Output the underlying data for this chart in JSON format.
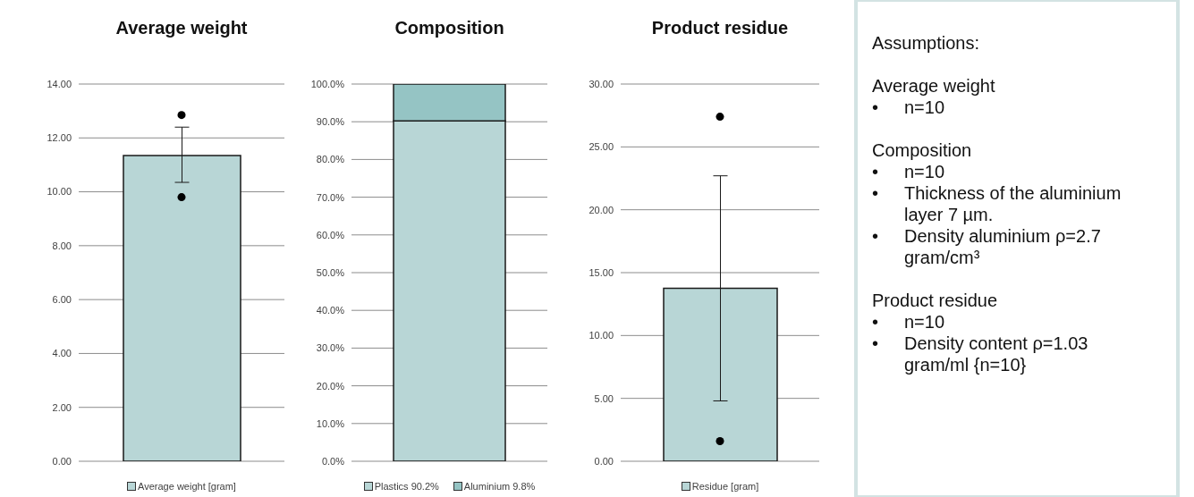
{
  "chart_data": [
    {
      "type": "bar",
      "title": "Average weight",
      "categories": [
        null
      ],
      "tick_labels": "y",
      "grid": "y",
      "legend": "bottom",
      "marker": "circle",
      "series": [
        {
          "name": "Average weight [gram]",
          "color": "#b8d6d6",
          "values": [
            11.35
          ],
          "errors": [
            [
              10.35,
              12.4
            ]
          ]
        },
        {
          "type": "scatter",
          "color": "#000000",
          "values": [
            12.85
          ]
        },
        {
          "type": "scatter",
          "color": "#000000",
          "values": [
            9.8
          ]
        }
      ],
      "ylim": [
        0,
        14
      ],
      "yticks": [
        {
          "value": 0,
          "label": "0.00"
        },
        {
          "value": 2,
          "label": "2.00"
        },
        {
          "value": 4,
          "label": "4.00"
        },
        {
          "value": 6,
          "label": "6.00"
        },
        {
          "value": 8,
          "label": "8.00"
        },
        {
          "value": 10,
          "label": "10.00"
        },
        {
          "value": 12,
          "label": "12.00"
        },
        {
          "value": 14,
          "label": "14.00"
        }
      ]
    },
    {
      "type": "bar",
      "title": "Composition",
      "categories": [
        null
      ],
      "tick_labels": "y",
      "grid": "y",
      "legend": "bottom",
      "stacked": true,
      "series": [
        {
          "name": "Plastics 90.2%",
          "color": "#b8d6d6",
          "values": [
            90.2
          ]
        },
        {
          "name": "Aluminium 9.8%",
          "color": "#95c4c4",
          "values": [
            9.8
          ]
        }
      ],
      "ylim": [
        0,
        100
      ],
      "yticks": [
        {
          "value": 0,
          "label": "0.0%"
        },
        {
          "value": 10,
          "label": "10.0%"
        },
        {
          "value": 20,
          "label": "20.0%"
        },
        {
          "value": 30,
          "label": "30.0%"
        },
        {
          "value": 40,
          "label": "40.0%"
        },
        {
          "value": 50,
          "label": "50.0%"
        },
        {
          "value": 60,
          "label": "60.0%"
        },
        {
          "value": 70,
          "label": "70.0%"
        },
        {
          "value": 80,
          "label": "80.0%"
        },
        {
          "value": 90,
          "label": "90.0%"
        },
        {
          "value": 100,
          "label": "100.0%"
        }
      ]
    },
    {
      "type": "bar",
      "title": "Product residue",
      "categories": [
        null
      ],
      "tick_labels": "y",
      "grid": "y",
      "legend": "bottom",
      "marker": "circle",
      "series": [
        {
          "name": "Residue [gram]",
          "color": "#b8d6d6",
          "values": [
            13.75
          ],
          "errors": [
            [
              4.8,
              22.7
            ]
          ]
        },
        {
          "type": "scatter",
          "color": "#000000",
          "values": [
            27.4
          ]
        },
        {
          "type": "scatter",
          "color": "#000000",
          "values": [
            1.6
          ]
        }
      ],
      "ylim": [
        0,
        30
      ],
      "yticks": [
        {
          "value": 0,
          "label": "0.00"
        },
        {
          "value": 5,
          "label": "5.00"
        },
        {
          "value": 10,
          "label": "10.00"
        },
        {
          "value": 15,
          "label": "15.00"
        },
        {
          "value": 20,
          "label": "20.00"
        },
        {
          "value": 25,
          "label": "25.00"
        },
        {
          "value": 30,
          "label": "30.00"
        }
      ]
    },
    {
      "type": "other",
      "title": "Assumptions:",
      "annotations": [
        "Average weight\n•\tn=10",
        "Composition\n•\tn=10\n•\tThickness of the aluminium layer 7 µm.\n•\tDensity aluminium ρ=2.7 gram/cm³",
        "Product residue\n•\tn=10\n•\tDensity content ρ=1.03 gram/ml {n=10}"
      ]
    }
  ]
}
